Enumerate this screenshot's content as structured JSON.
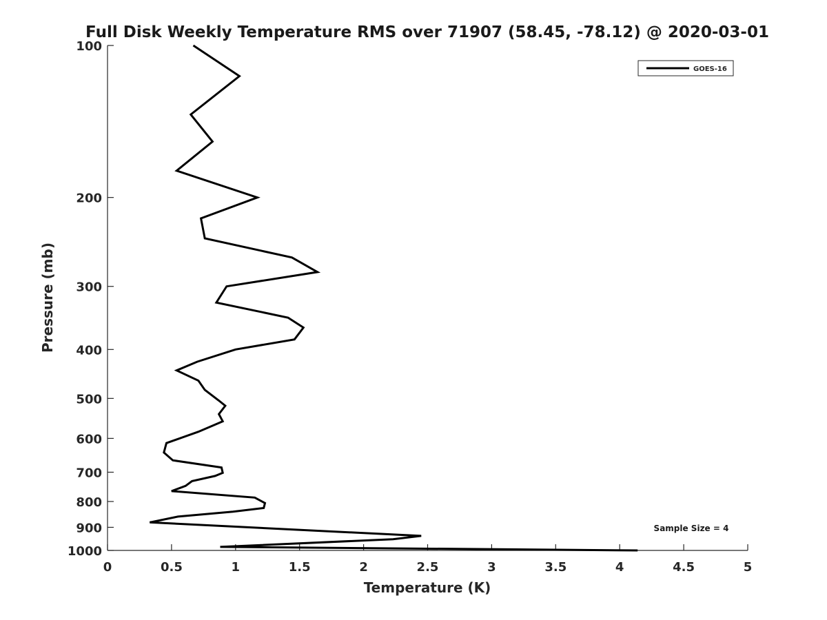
{
  "chart_data": {
    "type": "line",
    "title": "Full Disk Weekly Temperature RMS over 71907 (58.45, -78.12) @ 2020-03-01",
    "xlabel": "Temperature (K)",
    "ylabel": "Pressure (mb)",
    "xlim": [
      0,
      5
    ],
    "ylim": [
      100,
      1000
    ],
    "y_scale": "log",
    "y_reversed": true,
    "xticks": [
      0,
      0.5,
      1,
      1.5,
      2,
      2.5,
      3,
      3.5,
      4,
      4.5,
      5
    ],
    "xtick_labels": [
      "0",
      "0.5",
      "1",
      "1.5",
      "2",
      "2.5",
      "3",
      "3.5",
      "4",
      "4.5",
      "5"
    ],
    "yticks": [
      100,
      200,
      300,
      400,
      500,
      600,
      700,
      800,
      900,
      1000
    ],
    "ytick_labels": [
      "100",
      "200",
      "300",
      "400",
      "500",
      "600",
      "700",
      "800",
      "900",
      "1000"
    ],
    "grid": false,
    "legend_position": "top-right",
    "series": [
      {
        "name": "GOES-16",
        "color": "#000000",
        "x": [
          0.67,
          1.03,
          0.65,
          0.82,
          0.54,
          1.17,
          0.73,
          0.76,
          1.44,
          1.64,
          0.93,
          0.85,
          1.41,
          1.53,
          1.46,
          1.0,
          0.7,
          0.54,
          0.71,
          0.76,
          0.87,
          0.92,
          0.87,
          0.9,
          0.71,
          0.46,
          0.44,
          0.51,
          0.89,
          0.9,
          0.84,
          0.66,
          0.61,
          0.5,
          1.15,
          1.23,
          1.22,
          0.98,
          0.55,
          0.33,
          2.45,
          2.23,
          0.88,
          4.14
        ],
        "y": [
          100,
          115,
          137,
          155,
          177,
          200,
          220,
          241,
          263,
          281,
          300,
          323,
          346,
          362,
          382,
          400,
          423,
          440,
          461,
          481,
          505,
          517,
          537,
          555,
          582,
          613,
          640,
          663,
          685,
          702,
          712,
          729,
          745,
          763,
          786,
          806,
          824,
          838,
          857,
          880,
          936,
          950,
          984,
          1000
        ]
      }
    ],
    "annotations": [
      "Sample Size = 4"
    ]
  }
}
